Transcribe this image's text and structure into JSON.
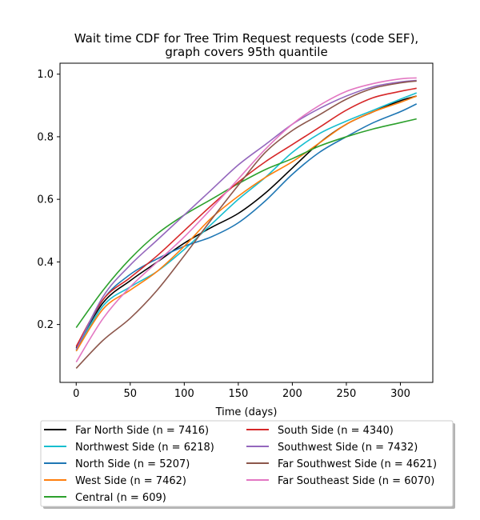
{
  "chart_data": {
    "type": "line",
    "title_line1": "Wait time CDF for Tree Trim Request  requests (code SEF),",
    "title_line2": "graph covers 95th quantile",
    "xlabel": "Time (days)",
    "ylabel": "",
    "xlim": [
      -15,
      330
    ],
    "ylim": [
      0.015,
      1.035
    ],
    "x_ticks": [
      0,
      50,
      100,
      150,
      200,
      250,
      300
    ],
    "y_ticks": [
      0.2,
      0.4,
      0.6,
      0.8,
      1.0
    ],
    "x_tick_labels": [
      "0",
      "50",
      "100",
      "150",
      "200",
      "250",
      "300"
    ],
    "y_tick_labels": [
      "0.2",
      "0.4",
      "0.6",
      "0.8",
      "1.0"
    ],
    "grid": false,
    "legend_position": "below",
    "x": [
      0,
      25,
      50,
      75,
      100,
      125,
      150,
      175,
      200,
      225,
      250,
      275,
      300,
      315
    ],
    "series": [
      {
        "name": "Far North Side (n = 7416)",
        "color": "#000000",
        "values": [
          0.125,
          0.27,
          0.34,
          0.4,
          0.46,
          0.51,
          0.555,
          0.62,
          0.7,
          0.78,
          0.84,
          0.88,
          0.915,
          0.93
        ]
      },
      {
        "name": "Northwest Side (n = 6218)",
        "color": "#17becf",
        "values": [
          0.115,
          0.26,
          0.32,
          0.37,
          0.44,
          0.52,
          0.6,
          0.67,
          0.75,
          0.81,
          0.85,
          0.885,
          0.92,
          0.94
        ]
      },
      {
        "name": "North Side (n = 5207)",
        "color": "#1f77b4",
        "values": [
          0.12,
          0.28,
          0.36,
          0.41,
          0.45,
          0.48,
          0.525,
          0.595,
          0.68,
          0.75,
          0.8,
          0.845,
          0.88,
          0.905
        ]
      },
      {
        "name": "West Side (n = 7462)",
        "color": "#ff7f0e",
        "values": [
          0.115,
          0.25,
          0.31,
          0.37,
          0.45,
          0.54,
          0.61,
          0.67,
          0.72,
          0.78,
          0.84,
          0.88,
          0.91,
          0.93
        ]
      },
      {
        "name": "Central (n = 609)",
        "color": "#2ca02c",
        "values": [
          0.19,
          0.31,
          0.41,
          0.49,
          0.55,
          0.6,
          0.65,
          0.695,
          0.73,
          0.77,
          0.8,
          0.825,
          0.845,
          0.857
        ]
      },
      {
        "name": "South Side (n = 4340)",
        "color": "#d62728",
        "values": [
          0.13,
          0.28,
          0.35,
          0.42,
          0.5,
          0.58,
          0.655,
          0.72,
          0.775,
          0.83,
          0.885,
          0.925,
          0.945,
          0.955
        ]
      },
      {
        "name": "Southwest Side (n = 7432)",
        "color": "#9467bd",
        "values": [
          0.12,
          0.29,
          0.39,
          0.47,
          0.55,
          0.63,
          0.71,
          0.775,
          0.84,
          0.89,
          0.93,
          0.96,
          0.975,
          0.98
        ]
      },
      {
        "name": "Far Southwest Side (n = 4621)",
        "color": "#8c564b",
        "values": [
          0.06,
          0.15,
          0.22,
          0.31,
          0.42,
          0.535,
          0.645,
          0.75,
          0.82,
          0.87,
          0.92,
          0.955,
          0.972,
          0.978
        ]
      },
      {
        "name": "Far Southeast Side (n = 6070)",
        "color": "#e377c2",
        "values": [
          0.08,
          0.22,
          0.32,
          0.4,
          0.48,
          0.57,
          0.665,
          0.76,
          0.84,
          0.9,
          0.945,
          0.97,
          0.985,
          0.988
        ]
      }
    ]
  }
}
